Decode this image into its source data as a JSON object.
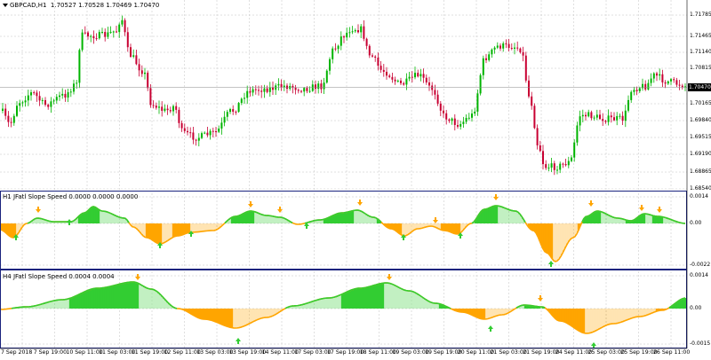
{
  "main": {
    "symbol": "GBPCAD,H1",
    "ohlc": "1.70527 1.70528 1.70469 1.70470",
    "current_price": "1.70470",
    "y_ticks": [
      "1.71785",
      "1.71465",
      "1.71140",
      "1.70815",
      "1.70165",
      "1.69840",
      "1.69515",
      "1.69190",
      "1.68865",
      "1.68540"
    ]
  },
  "ind1": {
    "title": "H1 JFatl Slope Speed 0.0000 0.0000 0.0000",
    "y_ticks": [
      "0.0014",
      "0.00",
      "-0.0022"
    ]
  },
  "ind2": {
    "title": "H4 JFatl Slope Speed 0.0004 0.0004",
    "y_ticks": [
      "0.0014",
      "0.00",
      "-0.0015"
    ]
  },
  "x_axis": [
    "7 Sep 2018",
    "7 Sep 19:00",
    "10 Sep 11:00",
    "11 Sep 03:00",
    "11 Sep 19:00",
    "12 Sep 11:00",
    "13 Sep 03:00",
    "13 Sep 19:00",
    "14 Sep 11:00",
    "17 Sep 03:00",
    "17 Sep 19:00",
    "18 Sep 11:00",
    "19 Sep 03:00",
    "19 Sep 19:00",
    "20 Sep 11:00",
    "21 Sep 03:00",
    "21 Sep 19:00",
    "24 Sep 11:00",
    "25 Sep 03:00",
    "25 Sep 19:00",
    "26 Sep 11:00"
  ],
  "colors": {
    "bull": "#00b400",
    "bear": "#c80032",
    "pos": "#32cd32",
    "neg": "#ffa500",
    "grid": "#c0c0c0",
    "border": "#1a237e"
  }
}
